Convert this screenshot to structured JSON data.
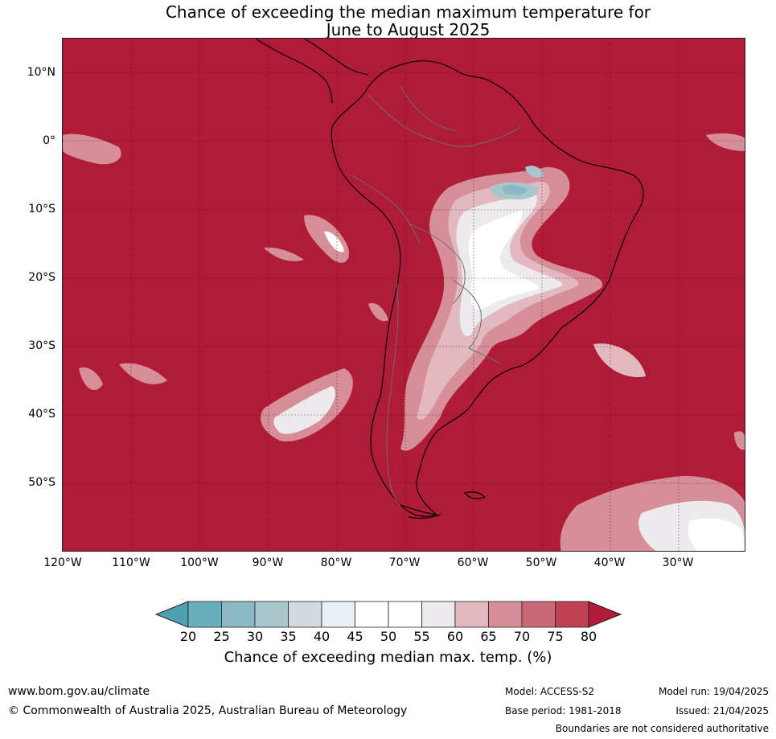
{
  "title_line1": "Chance of exceeding the median maximum temperature for",
  "title_line2": "June to August 2025",
  "lat_labels": [
    "10°N",
    "0°",
    "10°S",
    "20°S",
    "30°S",
    "40°S",
    "50°S"
  ],
  "lon_labels": [
    "120°W",
    "110°W",
    "100°W",
    "90°W",
    "80°W",
    "70°W",
    "60°W",
    "50°W",
    "40°W",
    "30°W"
  ],
  "legend": {
    "ticks": [
      "20",
      "25",
      "30",
      "35",
      "40",
      "45",
      "50",
      "55",
      "60",
      "65",
      "70",
      "75",
      "80"
    ],
    "colors": [
      "#4e9fb0",
      "#6aadbc",
      "#8ab8c5",
      "#a9c6cd",
      "#d1d9dc",
      "#e9eff2",
      "#ffffff",
      "#ffffff",
      "#eceaec",
      "#e2b9c0",
      "#d68e98",
      "#c86a76",
      "#be4252",
      "#b01c38"
    ],
    "label": "Chance of exceeding median max. temp. (%)"
  },
  "map_colors": {
    "base": "#b01c38",
    "c75": "#be4252",
    "c70": "#c86a76",
    "c65": "#d68e98",
    "c60": "#e2b9c0",
    "c55": "#eceaec",
    "c50": "#ffffff",
    "c40": "#a9c6cd",
    "c35": "#8ab8c5"
  },
  "footer": {
    "website": "www.bom.gov.au/climate",
    "copyright": "© Commonwealth of Australia 2025, Australian Bureau of Meteorology",
    "model": "Model: ACCESS-S2",
    "base_period": "Base period: 1981-2018",
    "model_run": "Model run: 19/04/2025",
    "issued": "Issued: 21/04/2025",
    "disclaimer": "Boundaries are not considered authoritative"
  }
}
